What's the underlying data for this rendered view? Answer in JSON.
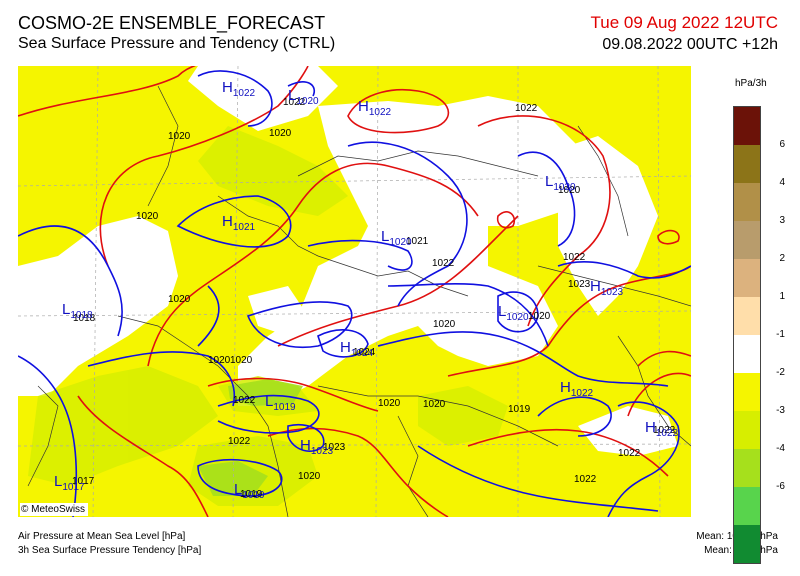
{
  "header": {
    "title": "COSMO-2E ENSEMBLE_FORECAST",
    "subtitle": "Sea Surface Pressure and Tendency (CTRL)",
    "valid_time": "Tue 09 Aug 2022 12UTC",
    "run_time": "09.08.2022 00UTC +12h"
  },
  "legend": {
    "unit": "hPa/3h",
    "colors": [
      "#6b1208",
      "#8c7418",
      "#b19048",
      "#b89c6c",
      "#dcb27e",
      "#ffdeaa",
      "#ffffff",
      "#f5f500",
      "#d7ee00",
      "#a6e01c",
      "#58d44c",
      "#118b31"
    ],
    "ticks": [
      "6",
      "4",
      "3",
      "2",
      "1",
      "-1",
      "-2",
      "-3",
      "-4",
      "-6"
    ]
  },
  "map": {
    "isobar_colors": {
      "line_1020_hPa": "#e01010",
      "line_1022_hPa": "#1010e0"
    },
    "pressure_labels": [
      "1022",
      "1020",
      "1022",
      "1020",
      "1020",
      "1021",
      "1020",
      "1020",
      "1022",
      "1020",
      "1022",
      "1023",
      "1018",
      "1020",
      "1020",
      "1022",
      "1024",
      "1020",
      "1020",
      "1019",
      "1022",
      "1023",
      "1020",
      "1022",
      "1022",
      "1017",
      "1022",
      "1019",
      "1020"
    ],
    "centers": [
      {
        "letter": "H",
        "value": "1022"
      },
      {
        "letter": "L",
        "value": "1020"
      },
      {
        "letter": "H",
        "value": "1022"
      },
      {
        "letter": "L",
        "value": "1020"
      },
      {
        "letter": "H",
        "value": "1021"
      },
      {
        "letter": "L",
        "value": "1020"
      },
      {
        "letter": "H",
        "value": "1023"
      },
      {
        "letter": "L",
        "value": "1018"
      },
      {
        "letter": "L",
        "value": "1020"
      },
      {
        "letter": "H",
        "value": "1024"
      },
      {
        "letter": "L",
        "value": "1019"
      },
      {
        "letter": "H",
        "value": "1022"
      },
      {
        "letter": "H",
        "value": "1023"
      },
      {
        "letter": "H",
        "value": "1022"
      },
      {
        "letter": "L",
        "value": "1017"
      },
      {
        "letter": "L",
        "value": "1019"
      }
    ]
  },
  "copyright": "© MeteoSwiss",
  "footer": {
    "line1": "Air Pressure at Mean Sea Level [hPa]",
    "line2": "3h Sea Surface Pressure Tendency [hPa]",
    "mean_pressure": "Mean: 1020.7 hPa",
    "mean_tendency": "Mean:   -1.3 hPa"
  }
}
